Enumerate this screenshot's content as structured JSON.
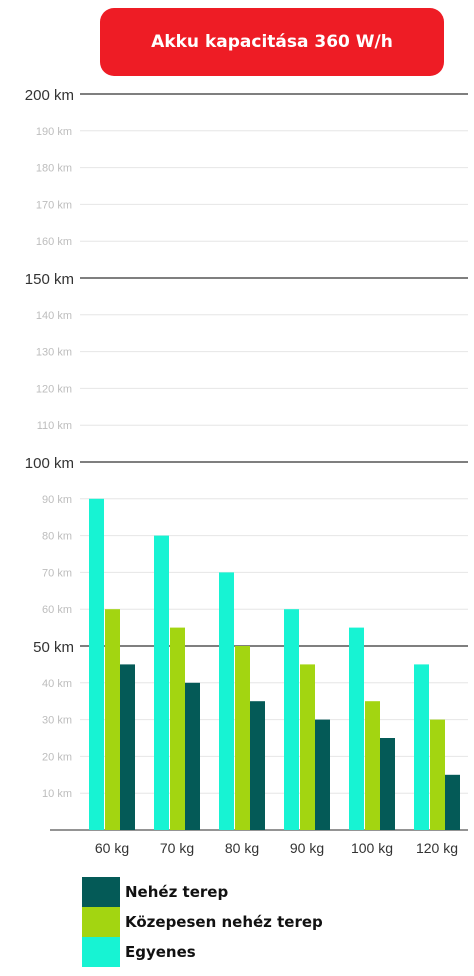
{
  "header": {
    "title": "Akku kapacitása 360 W/h"
  },
  "colors": {
    "banner": "#ee1c25",
    "nehez": "#045a57",
    "kozepes": "#a3d511",
    "egyenes": "#17f3d3"
  },
  "chart_data": {
    "type": "bar",
    "title": "Akku kapacitása 360 W/h",
    "xlabel": "",
    "ylabel": "",
    "ylim": [
      0,
      200
    ],
    "yticks": [
      {
        "value": 10,
        "label": "10 km",
        "major": false
      },
      {
        "value": 20,
        "label": "20 km",
        "major": false
      },
      {
        "value": 30,
        "label": "30 km",
        "major": false
      },
      {
        "value": 40,
        "label": "40 km",
        "major": false
      },
      {
        "value": 50,
        "label": "50 km",
        "major": true
      },
      {
        "value": 60,
        "label": "60 km",
        "major": false
      },
      {
        "value": 70,
        "label": "70 km",
        "major": false
      },
      {
        "value": 80,
        "label": "80 km",
        "major": false
      },
      {
        "value": 90,
        "label": "90 km",
        "major": false
      },
      {
        "value": 100,
        "label": "100 km",
        "major": true
      },
      {
        "value": 110,
        "label": "110 km",
        "major": false
      },
      {
        "value": 120,
        "label": "120 km",
        "major": false
      },
      {
        "value": 130,
        "label": "130 km",
        "major": false
      },
      {
        "value": 140,
        "label": "140 km",
        "major": false
      },
      {
        "value": 150,
        "label": "150 km",
        "major": true
      },
      {
        "value": 160,
        "label": "160 km",
        "major": false
      },
      {
        "value": 170,
        "label": "170 km",
        "major": false
      },
      {
        "value": 180,
        "label": "180 km",
        "major": false
      },
      {
        "value": 190,
        "label": "190 km",
        "major": false
      },
      {
        "value": 200,
        "label": "200 km",
        "major": true
      }
    ],
    "categories": [
      "60 kg",
      "70 kg",
      "80 kg",
      "90 kg",
      "100 kg",
      "120 kg"
    ],
    "series": [
      {
        "name": "Egyenes",
        "color": "#17f3d3",
        "values": [
          90,
          80,
          70,
          60,
          55,
          45
        ]
      },
      {
        "name": "Közepesen nehéz terep",
        "color": "#a3d511",
        "values": [
          60,
          55,
          50,
          45,
          35,
          30
        ]
      },
      {
        "name": "Nehéz terep",
        "color": "#045a57",
        "values": [
          45,
          40,
          35,
          30,
          25,
          15
        ]
      }
    ],
    "legend": [
      {
        "name": "Nehéz terep",
        "color": "#045a57"
      },
      {
        "name": "Közepesen nehéz terep",
        "color": "#a3d511"
      },
      {
        "name": "Egyenes",
        "color": "#17f3d3"
      }
    ],
    "grid": true,
    "legend_position": "bottom-left"
  }
}
